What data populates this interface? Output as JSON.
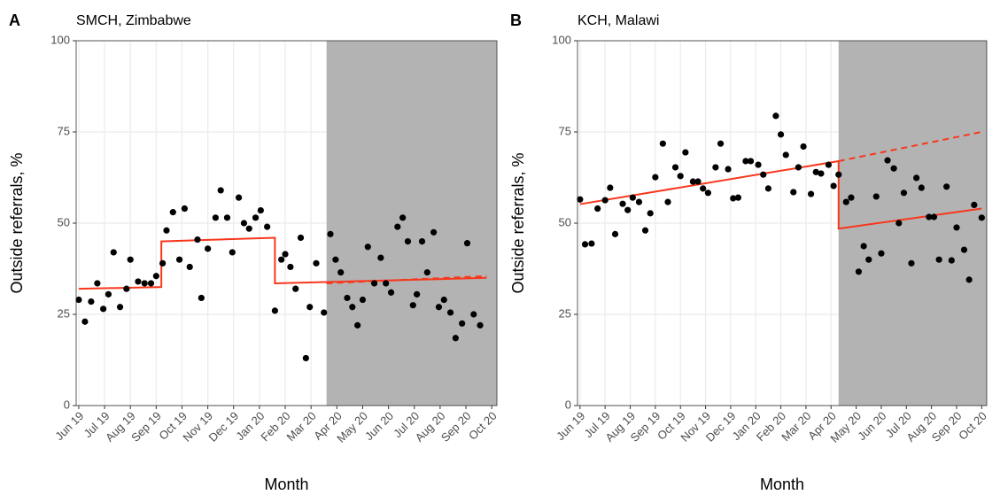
{
  "chart_data": [
    {
      "type": "scatter",
      "panel": "A",
      "title": "SMCH, Zimbabwe",
      "xlabel": "Month",
      "ylabel": "Outside referrals, %",
      "color": "#000000",
      "grid": true,
      "xlim": [
        -0.1,
        16.2
      ],
      "ylim": [
        0,
        100
      ],
      "yticks": [
        0,
        25,
        50,
        75,
        100
      ],
      "xticks": [
        {
          "value": 0,
          "label": "Jun 19"
        },
        {
          "value": 1,
          "label": "Jul 19"
        },
        {
          "value": 2,
          "label": "Aug 19"
        },
        {
          "value": 3,
          "label": "Sep 19"
        },
        {
          "value": 4,
          "label": "Oct 19"
        },
        {
          "value": 5,
          "label": "Nov 19"
        },
        {
          "value": 6,
          "label": "Dec 19"
        },
        {
          "value": 7,
          "label": "Jan 20"
        },
        {
          "value": 8,
          "label": "Feb 20"
        },
        {
          "value": 9,
          "label": "Mar 20"
        },
        {
          "value": 10,
          "label": "Apr 20"
        },
        {
          "value": 11,
          "label": "May 20"
        },
        {
          "value": 12,
          "label": "Jun 20"
        },
        {
          "value": 13,
          "label": "Jul 20"
        },
        {
          "value": 14,
          "label": "Aug 20"
        },
        {
          "value": 15,
          "label": "Sep 20"
        },
        {
          "value": 16,
          "label": "Oct 20"
        }
      ],
      "shaded": {
        "from": 9.6,
        "to": 16.2,
        "color": "#b3b3b3"
      },
      "x": [
        0,
        0.24,
        0.48,
        0.72,
        0.95,
        1.15,
        1.35,
        1.6,
        1.85,
        2.0,
        2.3,
        2.55,
        2.8,
        3.0,
        3.25,
        3.4,
        3.65,
        3.9,
        4.1,
        4.3,
        4.6,
        4.75,
        5.0,
        5.3,
        5.5,
        5.75,
        5.95,
        6.2,
        6.4,
        6.6,
        6.85,
        7.05,
        7.3,
        7.6,
        7.85,
        8.0,
        8.2,
        8.4,
        8.6,
        8.8,
        8.95,
        9.2,
        9.5,
        9.75,
        9.95,
        10.15,
        10.4,
        10.6,
        10.8,
        11.0,
        11.2,
        11.45,
        11.7,
        11.9,
        12.1,
        12.35,
        12.55,
        12.75,
        12.95,
        13.1,
        13.3,
        13.5,
        13.75,
        13.95,
        14.15,
        14.4,
        14.6,
        14.85,
        15.05,
        15.3,
        15.55
      ],
      "values": [
        29,
        23,
        28.5,
        33.5,
        26.5,
        30.5,
        42,
        27,
        32,
        40,
        34,
        33.5,
        33.5,
        35.5,
        39,
        48,
        53,
        40,
        54,
        38,
        45.5,
        29.5,
        43,
        51.5,
        59,
        51.5,
        42,
        57,
        50,
        48.5,
        51.5,
        53.5,
        49,
        26,
        40,
        41.5,
        38,
        32,
        46,
        13,
        27,
        39,
        25.5,
        47,
        40,
        36.5,
        29.5,
        27,
        22,
        29,
        43.5,
        33.5,
        40.5,
        33.5,
        31,
        49,
        51.5,
        45,
        27.5,
        30.5,
        45,
        36.5,
        47.5,
        27,
        29,
        25.5,
        18.5,
        22.5,
        44.5,
        25,
        22
      ],
      "lines": [
        {
          "color": "#f8371c",
          "dashed": false,
          "x": [
            0,
            3.2,
            3.2,
            7.6,
            7.6,
            15.8
          ],
          "values": [
            32,
            32.5,
            45,
            46,
            33.5,
            35
          ]
        },
        {
          "color": "#f8371c",
          "dashed": true,
          "x": [
            9.6,
            15.8
          ],
          "values": [
            33.5,
            35.5
          ]
        }
      ]
    },
    {
      "type": "scatter",
      "panel": "B",
      "title": "KCH, Malawi",
      "xlabel": "Month",
      "ylabel": "Outside referrals, %",
      "color": "#000000",
      "grid": true,
      "xlim": [
        -0.1,
        16.2
      ],
      "ylim": [
        0,
        100
      ],
      "yticks": [
        0,
        25,
        50,
        75,
        100
      ],
      "xticks": [
        {
          "value": 0,
          "label": "Jun 19"
        },
        {
          "value": 1,
          "label": "Jul 19"
        },
        {
          "value": 2,
          "label": "Aug 19"
        },
        {
          "value": 3,
          "label": "Sep 19"
        },
        {
          "value": 4,
          "label": "Oct 19"
        },
        {
          "value": 5,
          "label": "Nov 19"
        },
        {
          "value": 6,
          "label": "Dec 19"
        },
        {
          "value": 7,
          "label": "Jan 20"
        },
        {
          "value": 8,
          "label": "Feb 20"
        },
        {
          "value": 9,
          "label": "Mar 20"
        },
        {
          "value": 10,
          "label": "Apr 20"
        },
        {
          "value": 11,
          "label": "May 20"
        },
        {
          "value": 12,
          "label": "Jun 20"
        },
        {
          "value": 13,
          "label": "Jul 20"
        },
        {
          "value": 14,
          "label": "Aug 20"
        },
        {
          "value": 15,
          "label": "Sep 20"
        },
        {
          "value": 16,
          "label": "Oct 20"
        }
      ],
      "shaded": {
        "from": 10.3,
        "to": 16.2,
        "color": "#b3b3b3"
      },
      "x": [
        0,
        0.2,
        0.46,
        0.7,
        1.0,
        1.2,
        1.4,
        1.7,
        1.9,
        2.1,
        2.35,
        2.6,
        2.8,
        3.0,
        3.3,
        3.5,
        3.8,
        4.0,
        4.2,
        4.5,
        4.7,
        4.9,
        5.1,
        5.4,
        5.6,
        5.9,
        6.1,
        6.3,
        6.6,
        6.8,
        7.1,
        7.3,
        7.5,
        7.8,
        8.0,
        8.2,
        8.5,
        8.7,
        8.9,
        9.2,
        9.4,
        9.6,
        9.9,
        10.1,
        10.3,
        10.6,
        10.8,
        11.1,
        11.3,
        11.5,
        11.8,
        12.0,
        12.25,
        12.5,
        12.7,
        12.9,
        13.2,
        13.4,
        13.6,
        13.9,
        14.1,
        14.3,
        14.6,
        14.8,
        15.0,
        15.3,
        15.5,
        15.7,
        16.0
      ],
      "values": [
        56.5,
        44.2,
        44.4,
        54,
        56.3,
        59.7,
        47,
        55.3,
        53.6,
        57,
        55.8,
        48,
        52.7,
        62.6,
        71.8,
        55.8,
        65.3,
        62.9,
        69.4,
        61.4,
        61.4,
        59.5,
        58.3,
        65.3,
        71.8,
        64.8,
        56.8,
        57,
        67,
        67,
        66,
        63.3,
        59.5,
        79.4,
        74.3,
        68.7,
        58.5,
        65.3,
        71,
        58,
        64,
        63.6,
        66,
        60.2,
        63.3,
        55.8,
        57,
        36.7,
        43.7,
        40,
        57.3,
        41.7,
        67.2,
        65,
        50,
        58.3,
        39,
        62.4,
        59.7,
        51.7,
        51.7,
        40,
        60,
        39.8,
        48.8,
        42.7,
        34.5,
        55,
        51.5
      ],
      "lines": [
        {
          "color": "#f8371c",
          "dashed": false,
          "x": [
            0,
            10.3,
            10.3,
            16.0
          ],
          "values": [
            55.2,
            67,
            48.5,
            54
          ]
        },
        {
          "color": "#f8371c",
          "dashed": true,
          "x": [
            10.3,
            16.0
          ],
          "values": [
            67,
            75
          ]
        }
      ]
    }
  ]
}
